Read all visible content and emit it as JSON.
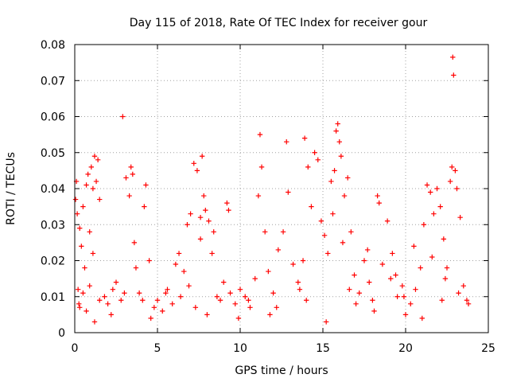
{
  "chart_data": {
    "type": "scatter",
    "title": "Day 115 of 2018, Rate Of TEC Index for receiver gour",
    "xlabel": "GPS time / hours",
    "ylabel": "ROTI / TECUs",
    "xlim": [
      0,
      25
    ],
    "ylim": [
      0,
      0.08
    ],
    "x_ticks": [
      0,
      5,
      10,
      15,
      20,
      25
    ],
    "x_tick_labels": [
      "0",
      "5",
      "10",
      "15",
      "20",
      "25"
    ],
    "y_ticks": [
      0,
      0.01,
      0.02,
      0.03,
      0.04,
      0.05,
      0.06,
      0.07,
      0.08
    ],
    "y_tick_labels": [
      "0",
      "0.01",
      "0.02",
      "0.03",
      "0.04",
      "0.05",
      "0.06",
      "0.07",
      "0.08"
    ],
    "grid": true,
    "legend": "none",
    "marker": "+",
    "color": "#ff0000",
    "series": [
      {
        "values": [
          [
            0.05,
            0.037
          ],
          [
            0.1,
            0.042
          ],
          [
            0.15,
            0.033
          ],
          [
            0.2,
            0.012
          ],
          [
            0.25,
            0.008
          ],
          [
            0.3,
            0.029
          ],
          [
            0.4,
            0.024
          ],
          [
            0.5,
            0.035
          ],
          [
            0.6,
            0.018
          ],
          [
            0.7,
            0.041
          ],
          [
            0.8,
            0.044
          ],
          [
            0.9,
            0.028
          ],
          [
            1.0,
            0.046
          ],
          [
            1.1,
            0.04
          ],
          [
            1.2,
            0.049
          ],
          [
            1.3,
            0.042
          ],
          [
            1.4,
            0.048
          ],
          [
            1.5,
            0.037
          ],
          [
            1.1,
            0.022
          ],
          [
            0.9,
            0.013
          ],
          [
            0.5,
            0.011
          ],
          [
            0.3,
            0.007
          ],
          [
            0.7,
            0.006
          ],
          [
            1.5,
            0.009
          ],
          [
            1.8,
            0.01
          ],
          [
            2.0,
            0.008
          ],
          [
            2.3,
            0.012
          ],
          [
            2.5,
            0.014
          ],
          [
            2.8,
            0.009
          ],
          [
            2.9,
            0.06
          ],
          [
            3.1,
            0.043
          ],
          [
            3.3,
            0.038
          ],
          [
            3.4,
            0.046
          ],
          [
            3.5,
            0.044
          ],
          [
            3.6,
            0.025
          ],
          [
            3.7,
            0.018
          ],
          [
            3.9,
            0.011
          ],
          [
            4.1,
            0.009
          ],
          [
            4.3,
            0.041
          ],
          [
            4.2,
            0.035
          ],
          [
            4.5,
            0.02
          ],
          [
            4.8,
            0.007
          ],
          [
            5.0,
            0.009
          ],
          [
            5.3,
            0.006
          ],
          [
            5.6,
            0.012
          ],
          [
            5.9,
            0.008
          ],
          [
            6.1,
            0.019
          ],
          [
            6.3,
            0.022
          ],
          [
            6.6,
            0.017
          ],
          [
            6.8,
            0.03
          ],
          [
            7.0,
            0.033
          ],
          [
            7.2,
            0.047
          ],
          [
            7.4,
            0.045
          ],
          [
            7.6,
            0.026
          ],
          [
            7.7,
            0.049
          ],
          [
            7.8,
            0.038
          ],
          [
            7.9,
            0.034
          ],
          [
            8.1,
            0.031
          ],
          [
            8.3,
            0.022
          ],
          [
            8.6,
            0.01
          ],
          [
            8.8,
            0.009
          ],
          [
            9.0,
            0.014
          ],
          [
            9.2,
            0.036
          ],
          [
            9.4,
            0.011
          ],
          [
            9.7,
            0.008
          ],
          [
            10.0,
            0.012
          ],
          [
            10.3,
            0.01
          ],
          [
            10.6,
            0.007
          ],
          [
            10.9,
            0.015
          ],
          [
            11.1,
            0.038
          ],
          [
            11.2,
            0.055
          ],
          [
            11.3,
            0.046
          ],
          [
            11.5,
            0.028
          ],
          [
            11.7,
            0.017
          ],
          [
            12.0,
            0.011
          ],
          [
            12.3,
            0.023
          ],
          [
            12.6,
            0.028
          ],
          [
            12.8,
            0.053
          ],
          [
            12.9,
            0.039
          ],
          [
            13.2,
            0.019
          ],
          [
            13.5,
            0.014
          ],
          [
            13.8,
            0.02
          ],
          [
            13.9,
            0.054
          ],
          [
            14.1,
            0.046
          ],
          [
            14.3,
            0.035
          ],
          [
            14.5,
            0.05
          ],
          [
            14.7,
            0.048
          ],
          [
            14.9,
            0.031
          ],
          [
            15.1,
            0.027
          ],
          [
            15.3,
            0.022
          ],
          [
            15.5,
            0.042
          ],
          [
            15.7,
            0.045
          ],
          [
            15.8,
            0.056
          ],
          [
            15.9,
            0.058
          ],
          [
            16.0,
            0.053
          ],
          [
            16.1,
            0.049
          ],
          [
            16.3,
            0.038
          ],
          [
            16.5,
            0.043
          ],
          [
            16.7,
            0.028
          ],
          [
            16.9,
            0.016
          ],
          [
            17.2,
            0.011
          ],
          [
            17.5,
            0.02
          ],
          [
            17.8,
            0.014
          ],
          [
            18.0,
            0.009
          ],
          [
            18.3,
            0.038
          ],
          [
            18.4,
            0.036
          ],
          [
            18.6,
            0.019
          ],
          [
            18.9,
            0.031
          ],
          [
            19.2,
            0.022
          ],
          [
            19.5,
            0.01
          ],
          [
            19.8,
            0.013
          ],
          [
            20.0,
            0.005
          ],
          [
            20.3,
            0.008
          ],
          [
            20.6,
            0.012
          ],
          [
            20.9,
            0.018
          ],
          [
            21.1,
            0.03
          ],
          [
            21.3,
            0.041
          ],
          [
            21.5,
            0.039
          ],
          [
            21.7,
            0.033
          ],
          [
            21.9,
            0.04
          ],
          [
            22.1,
            0.035
          ],
          [
            22.3,
            0.026
          ],
          [
            22.5,
            0.018
          ],
          [
            22.7,
            0.042
          ],
          [
            22.8,
            0.046
          ],
          [
            22.85,
            0.0765
          ],
          [
            22.9,
            0.0715
          ],
          [
            23.0,
            0.045
          ],
          [
            23.1,
            0.04
          ],
          [
            23.3,
            0.032
          ],
          [
            23.5,
            0.013
          ],
          [
            23.7,
            0.009
          ],
          [
            23.8,
            0.008
          ],
          [
            2.2,
            0.005
          ],
          [
            3.0,
            0.011
          ],
          [
            4.6,
            0.004
          ],
          [
            6.4,
            0.01
          ],
          [
            8.0,
            0.005
          ],
          [
            9.9,
            0.004
          ],
          [
            12.2,
            0.007
          ],
          [
            14.0,
            0.009
          ],
          [
            15.2,
            0.003
          ],
          [
            16.6,
            0.012
          ],
          [
            18.1,
            0.006
          ],
          [
            19.4,
            0.016
          ],
          [
            21.0,
            0.004
          ],
          [
            22.2,
            0.009
          ],
          [
            23.2,
            0.011
          ],
          [
            1.2,
            0.003
          ],
          [
            5.5,
            0.011
          ],
          [
            7.3,
            0.007
          ],
          [
            10.5,
            0.009
          ],
          [
            11.8,
            0.005
          ],
          [
            13.6,
            0.012
          ],
          [
            17.0,
            0.008
          ],
          [
            19.9,
            0.01
          ],
          [
            20.5,
            0.024
          ],
          [
            21.6,
            0.021
          ],
          [
            22.4,
            0.015
          ],
          [
            6.9,
            0.013
          ],
          [
            15.6,
            0.033
          ],
          [
            16.2,
            0.025
          ],
          [
            17.7,
            0.023
          ],
          [
            19.1,
            0.015
          ],
          [
            8.4,
            0.028
          ],
          [
            7.6,
            0.032
          ],
          [
            9.3,
            0.034
          ]
        ]
      }
    ]
  }
}
